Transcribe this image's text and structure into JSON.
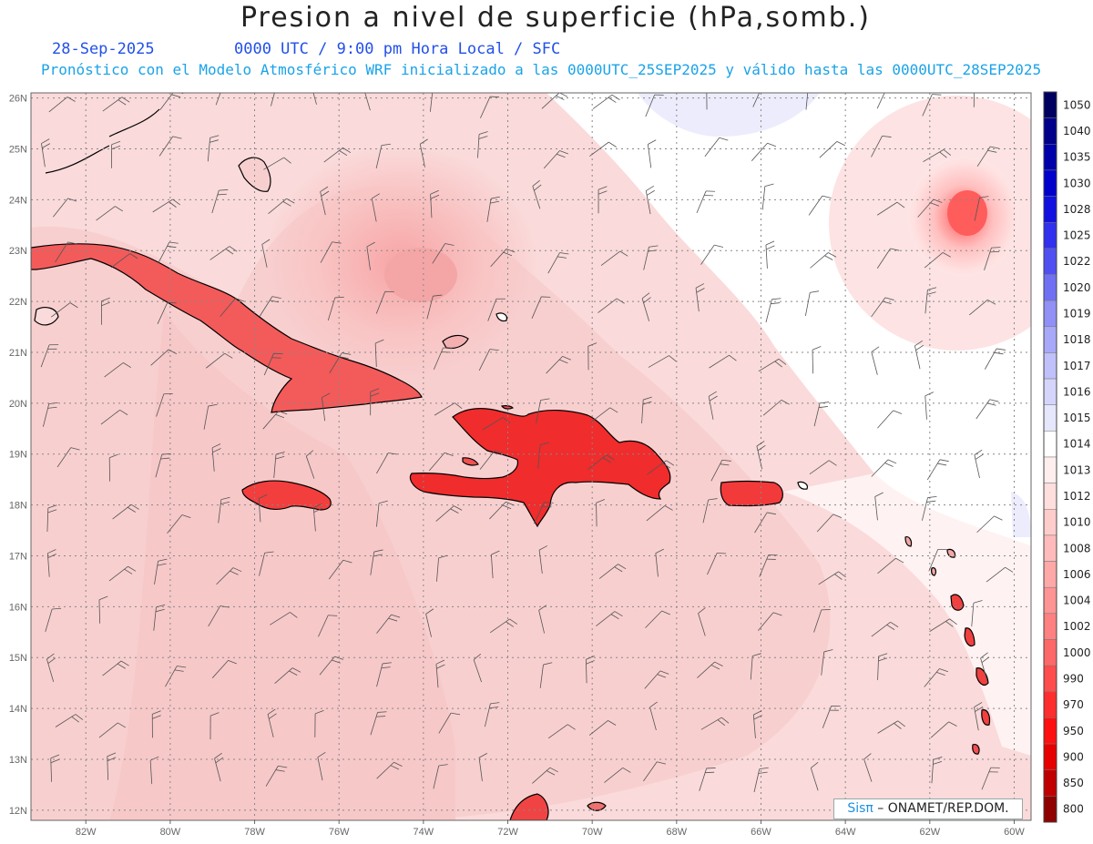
{
  "header": {
    "title": "Presion a nivel de superficie (hPa,somb.)",
    "date": "28-Sep-2025",
    "time": "0000 UTC / 9:00 pm Hora Local / SFC",
    "subtitle": "Pronóstico con el Modelo Atmosférico WRF inicializado a las 0000UTC_25SEP2025 y válido hasta las  0000UTC_28SEP2025"
  },
  "credit": {
    "brand": "Sisπ",
    "org": " – ONAMET/REP.DOM."
  },
  "map": {
    "lon_range": [
      -83.3,
      -59.6
    ],
    "lat_range": [
      11.8,
      26.1
    ],
    "lon_ticks": [
      "82W",
      "80W",
      "78W",
      "76W",
      "74W",
      "72W",
      "70W",
      "68W",
      "66W",
      "64W",
      "62W",
      "60W"
    ],
    "lat_ticks": [
      "26N",
      "25N",
      "24N",
      "23N",
      "22N",
      "21N",
      "20N",
      "19N",
      "18N",
      "17N",
      "16N",
      "15N",
      "14N",
      "13N",
      "12N"
    ]
  },
  "legend": {
    "levels": [
      "1050",
      "1040",
      "1035",
      "1030",
      "1028",
      "1025",
      "1022",
      "1020",
      "1019",
      "1018",
      "1017",
      "1016",
      "1015",
      "1014",
      "1013",
      "1012",
      "1010",
      "1008",
      "1006",
      "1004",
      "1002",
      "1000",
      "990",
      "970",
      "950",
      "900",
      "850",
      "800"
    ],
    "colors": [
      "#000060",
      "#00008b",
      "#0000aa",
      "#0000cc",
      "#1010e0",
      "#3030ee",
      "#5050f2",
      "#7070f4",
      "#9090f6",
      "#a8a8f8",
      "#c0c0fa",
      "#d5d5fb",
      "#e6e6fd",
      "#ffffff",
      "#ffeeee",
      "#ffdede",
      "#ffcccc",
      "#ffbbbb",
      "#ffa8a8",
      "#ff9494",
      "#ff8080",
      "#ff6868",
      "#ff4c4c",
      "#ff2e2e",
      "#ff1010",
      "#e60000",
      "#c00000",
      "#900000"
    ]
  },
  "colors": {
    "background_pressure": "#fbd8d8",
    "high_pressure": "#ffffff",
    "land_low": "#f03a3a",
    "hurricane_core": "#ff5050",
    "coast": "#000000"
  }
}
